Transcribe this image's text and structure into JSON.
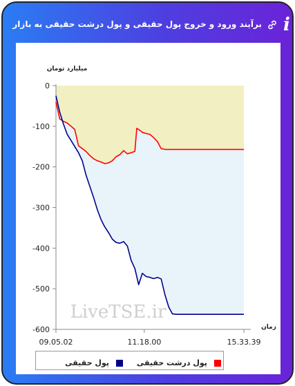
{
  "header": {
    "title": "برآیند ورود و خروج پول حقیقی و پول درشت حقیقی به بازار",
    "info_glyph": "i",
    "link_icon": "link-icon",
    "info_icon": "info-icon"
  },
  "colors": {
    "real_money": "#00008b",
    "big_real_money": "#ff0000",
    "area_real": "#e8f3fa",
    "area_big": "#f2efc2"
  },
  "watermark": "LiveTSE.ir",
  "chart_data": {
    "type": "area",
    "ylabel": "میلیارد تومان",
    "xlabel": "زمان",
    "ylim": [
      -600,
      0
    ],
    "yticks": [
      0,
      -100,
      -200,
      -300,
      -400,
      -500,
      -600
    ],
    "yticks_labels": [
      "0",
      "-100",
      "-200",
      "-300",
      "-400",
      "-500",
      "-600"
    ],
    "x_tick_labels": [
      "09.05.02",
      "11.18.00",
      "15.33.39"
    ],
    "x_tick_positions": [
      0,
      0.47,
      1
    ],
    "grid": false,
    "legend_placement": "bottom",
    "series": [
      {
        "name": "پول حقیقی",
        "x": [
          0,
          0.02,
          0.04,
          0.06,
          0.08,
          0.1,
          0.12,
          0.14,
          0.16,
          0.18,
          0.2,
          0.22,
          0.24,
          0.26,
          0.28,
          0.3,
          0.32,
          0.34,
          0.36,
          0.38,
          0.4,
          0.42,
          0.44,
          0.46,
          0.48,
          0.5,
          0.52,
          0.54,
          0.56,
          0.58,
          0.6,
          0.62,
          0.64,
          0.66,
          0.68,
          0.7,
          1
        ],
        "values": [
          -25,
          -65,
          -95,
          -120,
          -135,
          -150,
          -165,
          -185,
          -220,
          -248,
          -275,
          -305,
          -330,
          -348,
          -362,
          -378,
          -386,
          -388,
          -384,
          -395,
          -430,
          -450,
          -490,
          -462,
          -470,
          -472,
          -475,
          -472,
          -476,
          -515,
          -545,
          -562,
          -563,
          -563,
          -563,
          -563,
          -563
        ]
      },
      {
        "name": "پول درشت حقیقی",
        "x": [
          0,
          0.02,
          0.04,
          0.06,
          0.08,
          0.1,
          0.12,
          0.14,
          0.16,
          0.18,
          0.2,
          0.22,
          0.24,
          0.26,
          0.28,
          0.3,
          0.32,
          0.34,
          0.36,
          0.38,
          0.4,
          0.42,
          0.43,
          0.44,
          0.46,
          0.48,
          0.5,
          0.52,
          0.54,
          0.56,
          0.58,
          0.6,
          1
        ],
        "values": [
          -40,
          -82,
          -88,
          -92,
          -100,
          -108,
          -148,
          -155,
          -162,
          -172,
          -180,
          -185,
          -188,
          -192,
          -190,
          -185,
          -175,
          -170,
          -160,
          -168,
          -165,
          -162,
          -105,
          -108,
          -115,
          -118,
          -120,
          -128,
          -138,
          -155,
          -157,
          -157,
          -157
        ]
      }
    ]
  }
}
